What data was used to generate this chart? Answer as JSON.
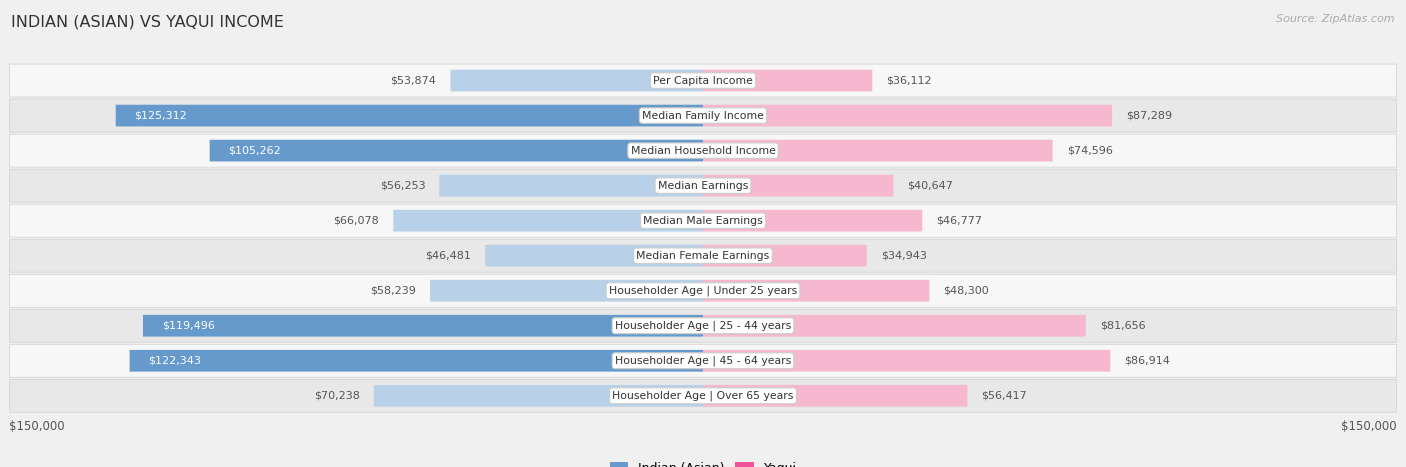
{
  "title": "INDIAN (ASIAN) VS YAQUI INCOME",
  "source": "Source: ZipAtlas.com",
  "categories": [
    "Per Capita Income",
    "Median Family Income",
    "Median Household Income",
    "Median Earnings",
    "Median Male Earnings",
    "Median Female Earnings",
    "Householder Age | Under 25 years",
    "Householder Age | 25 - 44 years",
    "Householder Age | 45 - 64 years",
    "Householder Age | Over 65 years"
  ],
  "indian_values": [
    53874,
    125312,
    105262,
    56253,
    66078,
    46481,
    58239,
    119496,
    122343,
    70238
  ],
  "yaqui_values": [
    36112,
    87289,
    74596,
    40647,
    46777,
    34943,
    48300,
    81656,
    86914,
    56417
  ],
  "indian_labels": [
    "$53,874",
    "$125,312",
    "$105,262",
    "$56,253",
    "$66,078",
    "$46,481",
    "$58,239",
    "$119,496",
    "$122,343",
    "$70,238"
  ],
  "yaqui_labels": [
    "$36,112",
    "$87,289",
    "$74,596",
    "$40,647",
    "$46,777",
    "$34,943",
    "$48,300",
    "$81,656",
    "$86,914",
    "$56,417"
  ],
  "max_value": 150000,
  "indian_color_light": "#b8d0e8",
  "yaqui_color_light": "#f5b8cf",
  "indian_color_solid": "#6699cc",
  "yaqui_color_solid": "#ee5599",
  "indian_label_inside": [
    false,
    true,
    true,
    false,
    false,
    false,
    false,
    true,
    true,
    false
  ],
  "yaqui_label_inside": [
    false,
    false,
    false,
    false,
    false,
    false,
    false,
    false,
    false,
    false
  ],
  "bg_color": "#f0f0f0",
  "row_bg_even": "#f7f7f7",
  "row_bg_odd": "#e8e8e8",
  "legend_indian": "Indian (Asian)",
  "legend_yaqui": "Yaqui",
  "xlabel_left": "$150,000",
  "xlabel_right": "$150,000"
}
